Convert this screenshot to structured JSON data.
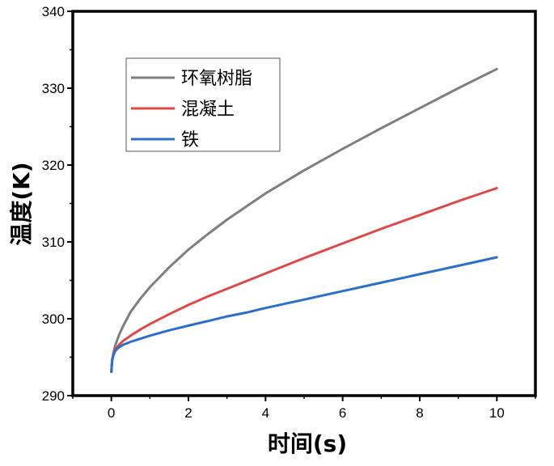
{
  "chart_data": {
    "type": "line",
    "xlabel": "时间(s)",
    "ylabel": "温度(K)",
    "xlim": [
      -1,
      11
    ],
    "ylim": [
      290,
      340
    ],
    "xticks": [
      0,
      2,
      4,
      6,
      8,
      10
    ],
    "yticks": [
      290,
      300,
      310,
      320,
      330,
      340
    ],
    "grid": false,
    "legend_position": "top-left",
    "series": [
      {
        "name": "环氧树脂",
        "color": "#7f7f7f",
        "x": [
          0,
          0.02,
          0.05,
          0.1,
          0.2,
          0.3,
          0.5,
          0.75,
          1,
          1.5,
          2,
          2.5,
          3,
          3.5,
          4,
          5,
          6,
          7,
          8,
          9,
          10
        ],
        "y": [
          293.1,
          294.6,
          295.5,
          296.5,
          297.9,
          299.0,
          300.9,
          302.6,
          304.1,
          306.7,
          309.0,
          311.0,
          312.9,
          314.6,
          316.3,
          319.3,
          322.1,
          324.8,
          327.4,
          330.0,
          332.5
        ]
      },
      {
        "name": "混凝土",
        "color": "#e04848",
        "x": [
          0,
          0.02,
          0.05,
          0.1,
          0.2,
          0.3,
          0.5,
          0.75,
          1,
          1.5,
          2,
          2.5,
          3,
          3.5,
          4,
          5,
          6,
          7,
          8,
          9,
          10
        ],
        "y": [
          293.1,
          294.6,
          295.3,
          296.0,
          296.6,
          297.1,
          297.8,
          298.6,
          299.3,
          300.6,
          301.8,
          302.9,
          303.9,
          304.9,
          305.9,
          307.9,
          309.8,
          311.7,
          313.5,
          315.3,
          317.0
        ]
      },
      {
        "name": "铁",
        "color": "#2b6fce",
        "x": [
          0,
          0.02,
          0.05,
          0.1,
          0.2,
          0.3,
          0.5,
          0.75,
          1,
          1.5,
          2,
          2.5,
          3,
          3.5,
          4,
          5,
          6,
          7,
          8,
          9,
          10
        ],
        "y": [
          293.1,
          294.5,
          295.2,
          295.8,
          296.3,
          296.6,
          297.0,
          297.4,
          297.8,
          298.5,
          299.1,
          299.7,
          300.3,
          300.8,
          301.4,
          302.5,
          303.6,
          304.7,
          305.8,
          306.9,
          308.0
        ]
      }
    ]
  }
}
